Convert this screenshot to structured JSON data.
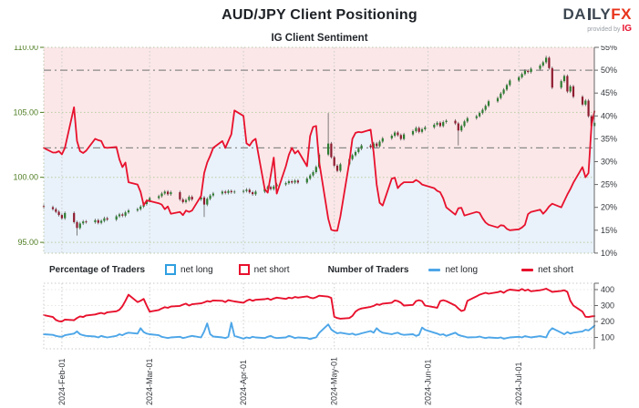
{
  "header": {
    "title": "AUD/JPY Client Positioning",
    "subtitle": "IG Client Sentiment",
    "logo": {
      "da": "DA",
      "ly": "LY",
      "fx": "FX",
      "provided_by": "provided by",
      "ig": "IG"
    }
  },
  "legend": {
    "pct_label": "Percentage of Traders",
    "pct_long": "net long",
    "pct_short": "net short",
    "num_label": "Number of Traders",
    "num_long": "net long",
    "num_short": "net short"
  },
  "colors": {
    "accent_red": "#e8112d",
    "line_blue": "#4da6e8",
    "legend_blue": "#2f9fe0",
    "fill_pink": "#fbe7e8",
    "fill_blue": "#e9f2fa",
    "candle_up": "#2e7d32",
    "candle_down": "#8e1b2f",
    "wick_gray": "#4a4a4a",
    "price_axis_green": "#4f7d22",
    "grid_green": "#b9cda2",
    "grid_gray": "#cccccc",
    "frame_dot": "#b9c7a9",
    "refline_gray": "#8a8a8a",
    "spine_gray": "#666666",
    "logo_navy": "#3d4752"
  },
  "axes": {
    "price_ticks": [
      {
        "label": "110.00",
        "value": 110
      },
      {
        "label": "105.00",
        "value": 105
      },
      {
        "label": "100.00",
        "value": 100
      },
      {
        "label": "95.00",
        "value": 95
      }
    ],
    "pct_ticks": [
      {
        "label": "55%",
        "value": 55
      },
      {
        "label": "50%",
        "value": 50
      },
      {
        "label": "45%",
        "value": 45
      },
      {
        "label": "40%",
        "value": 40
      },
      {
        "label": "35%",
        "value": 35
      },
      {
        "label": "30%",
        "value": 30
      },
      {
        "label": "25%",
        "value": 25
      },
      {
        "label": "20%",
        "value": 20
      },
      {
        "label": "15%",
        "value": 15
      },
      {
        "label": "10%",
        "value": 10
      }
    ],
    "count_ticks": [
      {
        "label": "400",
        "value": 400
      },
      {
        "label": "300",
        "value": 300
      },
      {
        "label": "200",
        "value": 200
      },
      {
        "label": "100",
        "value": 100
      }
    ],
    "months": [
      {
        "label": "2024-Feb-01",
        "date": "2024-02-01"
      },
      {
        "label": "2024-Mar-01",
        "date": "2024-03-01"
      },
      {
        "label": "2024-Apr-01",
        "date": "2024-04-01"
      },
      {
        "label": "2024-May-01",
        "date": "2024-05-01"
      },
      {
        "label": "2024-Jun-01",
        "date": "2024-06-01"
      },
      {
        "label": "2024-Jul-01",
        "date": "2024-07-01"
      }
    ]
  },
  "chart_data": [
    {
      "type": "candlestick+line",
      "title": "IG Client Sentiment",
      "description": "AUD/JPY daily candles (left price axis) with IG client net-short percentage (right axis, red line; pink fill above line, blue below)",
      "start_date": "2024-01-26",
      "frequency": "weekdays",
      "price_axis": {
        "min": 94.2,
        "max": 110
      },
      "pct_axis": {
        "min": 10,
        "max": 55,
        "step": 5
      },
      "reference_lines_pct": [
        50,
        33
      ],
      "open_first": 97.8,
      "close": [
        97.7,
        97.55,
        97.35,
        97.1,
        96.85,
        97.25,
        96.55,
        96.1,
        96.45,
        96.6,
        96.55,
        96.7,
        96.5,
        96.65,
        96.85,
        96.75,
        97.0,
        97.15,
        97.05,
        97.3,
        97.45,
        97.55,
        97.75,
        97.95,
        98.2,
        98.4,
        98.55,
        98.75,
        98.9,
        98.7,
        98.85,
        98.3,
        98.1,
        98.25,
        98.5,
        98.3,
        98.45,
        97.9,
        98.35,
        98.6,
        98.75,
        98.9,
        98.8,
        98.95,
        98.85,
        98.9,
        98.95,
        99.05,
        98.85,
        98.7,
        98.9,
        99.1,
        99.25,
        99.1,
        99.3,
        99.45,
        99.55,
        99.7,
        99.6,
        99.75,
        99.6,
        99.9,
        100.15,
        100.4,
        100.8,
        101.75,
        102.6,
        101.55,
        100.9,
        100.5,
        101.0,
        101.4,
        101.7,
        101.95,
        102.2,
        102.45,
        102.3,
        102.6,
        102.4,
        102.75,
        103.0,
        103.2,
        103.45,
        103.25,
        102.95,
        103.3,
        103.55,
        103.8,
        103.5,
        103.7,
        103.85,
        104.05,
        104.2,
        103.95,
        104.25,
        104.35,
        104.15,
        103.6,
        103.95,
        104.3,
        104.55,
        104.7,
        104.95,
        105.2,
        105.5,
        105.85,
        106.1,
        106.45,
        106.75,
        107.1,
        107.45,
        107.7,
        107.95,
        108.2,
        108.1,
        108.35,
        108.6,
        108.85,
        109.2,
        108.4,
        106.9,
        107.4,
        107.8,
        106.6,
        107.0,
        106.2,
        105.6,
        105.9,
        104.7,
        103.95,
        104.2
      ],
      "wick_overrides": {
        "7": {
          "low": 95.52
        },
        "37": {
          "low": 96.95
        },
        "66": {
          "high": 104.95
        },
        "97": {
          "low": 102.45
        },
        "118": {
          "high": 109.36
        }
      },
      "net_short_pct": [
        33.0,
        32.0,
        32.0,
        32.3,
        31.6,
        33.0,
        41.9,
        34.5,
        32.3,
        31.9,
        32.4,
        35.0,
        34.7,
        34.5,
        33.1,
        33.0,
        33.2,
        30.5,
        28.8,
        29.8,
        25.5,
        25.0,
        23.4,
        20.5,
        21.5,
        21.4,
        20.9,
        20.6,
        19.6,
        20.2,
        18.6,
        19.0,
        18.3,
        19.3,
        19.0,
        19.3,
        22.5,
        27.5,
        29.8,
        31.3,
        33.0,
        34.5,
        33.0,
        34.5,
        36.0,
        41.2,
        40.0,
        34.0,
        33.5,
        34.5,
        35.0,
        24.0,
        23.2,
        27.0,
        30.9,
        23.0,
        29.0,
        31.5,
        33.0,
        31.8,
        32.4,
        29.0,
        35.6,
        37.6,
        37.8,
        30.0,
        17.5,
        15.1,
        14.9,
        14.9,
        18.0,
        30.0,
        35.0,
        36.3,
        36.5,
        36.4,
        37.0,
        32.0,
        25.0,
        21.0,
        20.4,
        26.3,
        26.5,
        24.2,
        25.0,
        25.5,
        25.5,
        26.0,
        25.6,
        25.0,
        24.8,
        24.2,
        23.6,
        23.3,
        22.0,
        20.0,
        18.4,
        19.8,
        19.9,
        18.2,
        18.4,
        19.0,
        18.8,
        17.6,
        16.7,
        16.2,
        15.6,
        16.1,
        16.0,
        15.3,
        15.0,
        15.2,
        15.6,
        16.2,
        18.5,
        19.0,
        19.5,
        18.6,
        19.3,
        20.2,
        20.8,
        20.0,
        21.4,
        22.8,
        24.0,
        25.4,
        28.8,
        26.6,
        27.5,
        38.0,
        41.0
      ]
    },
    {
      "type": "line",
      "title": "Number of Traders",
      "description": "Daily number of IG traders net long (blue) and net short (red)",
      "start_date": "2024-01-26",
      "frequency": "weekdays",
      "y_ticks": [
        100,
        200,
        300,
        400
      ],
      "series": [
        {
          "name": "net long",
          "color_key": "line_blue",
          "values": [
            120,
            116,
            110,
            106,
            104,
            114,
            124,
            138,
            120,
            114,
            110,
            106,
            100,
            110,
            104,
            100,
            110,
            120,
            114,
            124,
            130,
            124,
            158,
            134,
            124,
            120,
            114,
            104,
            100,
            96,
            100,
            104,
            96,
            100,
            106,
            110,
            100,
            138,
            188,
            120,
            106,
            100,
            96,
            104,
            192,
            110,
            92,
            100,
            96,
            104,
            100,
            96,
            104,
            110,
            100,
            96,
            100,
            110,
            104,
            96,
            100,
            96,
            90,
            96,
            100,
            128,
            182,
            150,
            136,
            126,
            130,
            120,
            124,
            116,
            120,
            126,
            140,
            130,
            158,
            140,
            130,
            120,
            126,
            130,
            120,
            116,
            120,
            110,
            116,
            162,
            148,
            130,
            124,
            116,
            120,
            110,
            130,
            116,
            110,
            106,
            100,
            102,
            106,
            100,
            96,
            100,
            96,
            100,
            92,
            96,
            100,
            104,
            100,
            108,
            104,
            100,
            108,
            104,
            100,
            138,
            158,
            130,
            120,
            134,
            124,
            130,
            138,
            148,
            144,
            158,
            174
          ]
        },
        {
          "name": "net short",
          "color_key": "accent_red",
          "values": [
            240,
            228,
            210,
            202,
            200,
            212,
            208,
            222,
            232,
            228,
            238,
            244,
            250,
            254,
            248,
            258,
            264,
            274,
            296,
            330,
            368,
            322,
            330,
            342,
            300,
            262,
            272,
            282,
            290,
            286,
            294,
            298,
            306,
            312,
            300,
            308,
            314,
            320,
            328,
            324,
            332,
            330,
            322,
            334,
            330,
            326,
            318,
            330,
            338,
            330,
            336,
            340,
            344,
            336,
            344,
            350,
            342,
            350,
            346,
            354,
            350,
            358,
            350,
            346,
            352,
            362,
            356,
            348,
            230,
            222,
            218,
            222,
            235,
            262,
            275,
            282,
            292,
            298,
            308,
            304,
            312,
            318,
            332,
            328,
            318,
            300,
            304,
            328,
            334,
            328,
            300,
            290,
            286,
            328,
            334,
            328,
            300,
            282,
            266,
            272,
            330,
            358,
            368,
            374,
            380,
            374,
            384,
            390,
            380,
            394,
            400,
            394,
            404,
            394,
            400,
            390,
            396,
            400,
            406,
            396,
            386,
            392,
            396,
            386,
            330,
            300,
            262,
            230,
            228,
            232,
            234
          ]
        }
      ]
    }
  ]
}
